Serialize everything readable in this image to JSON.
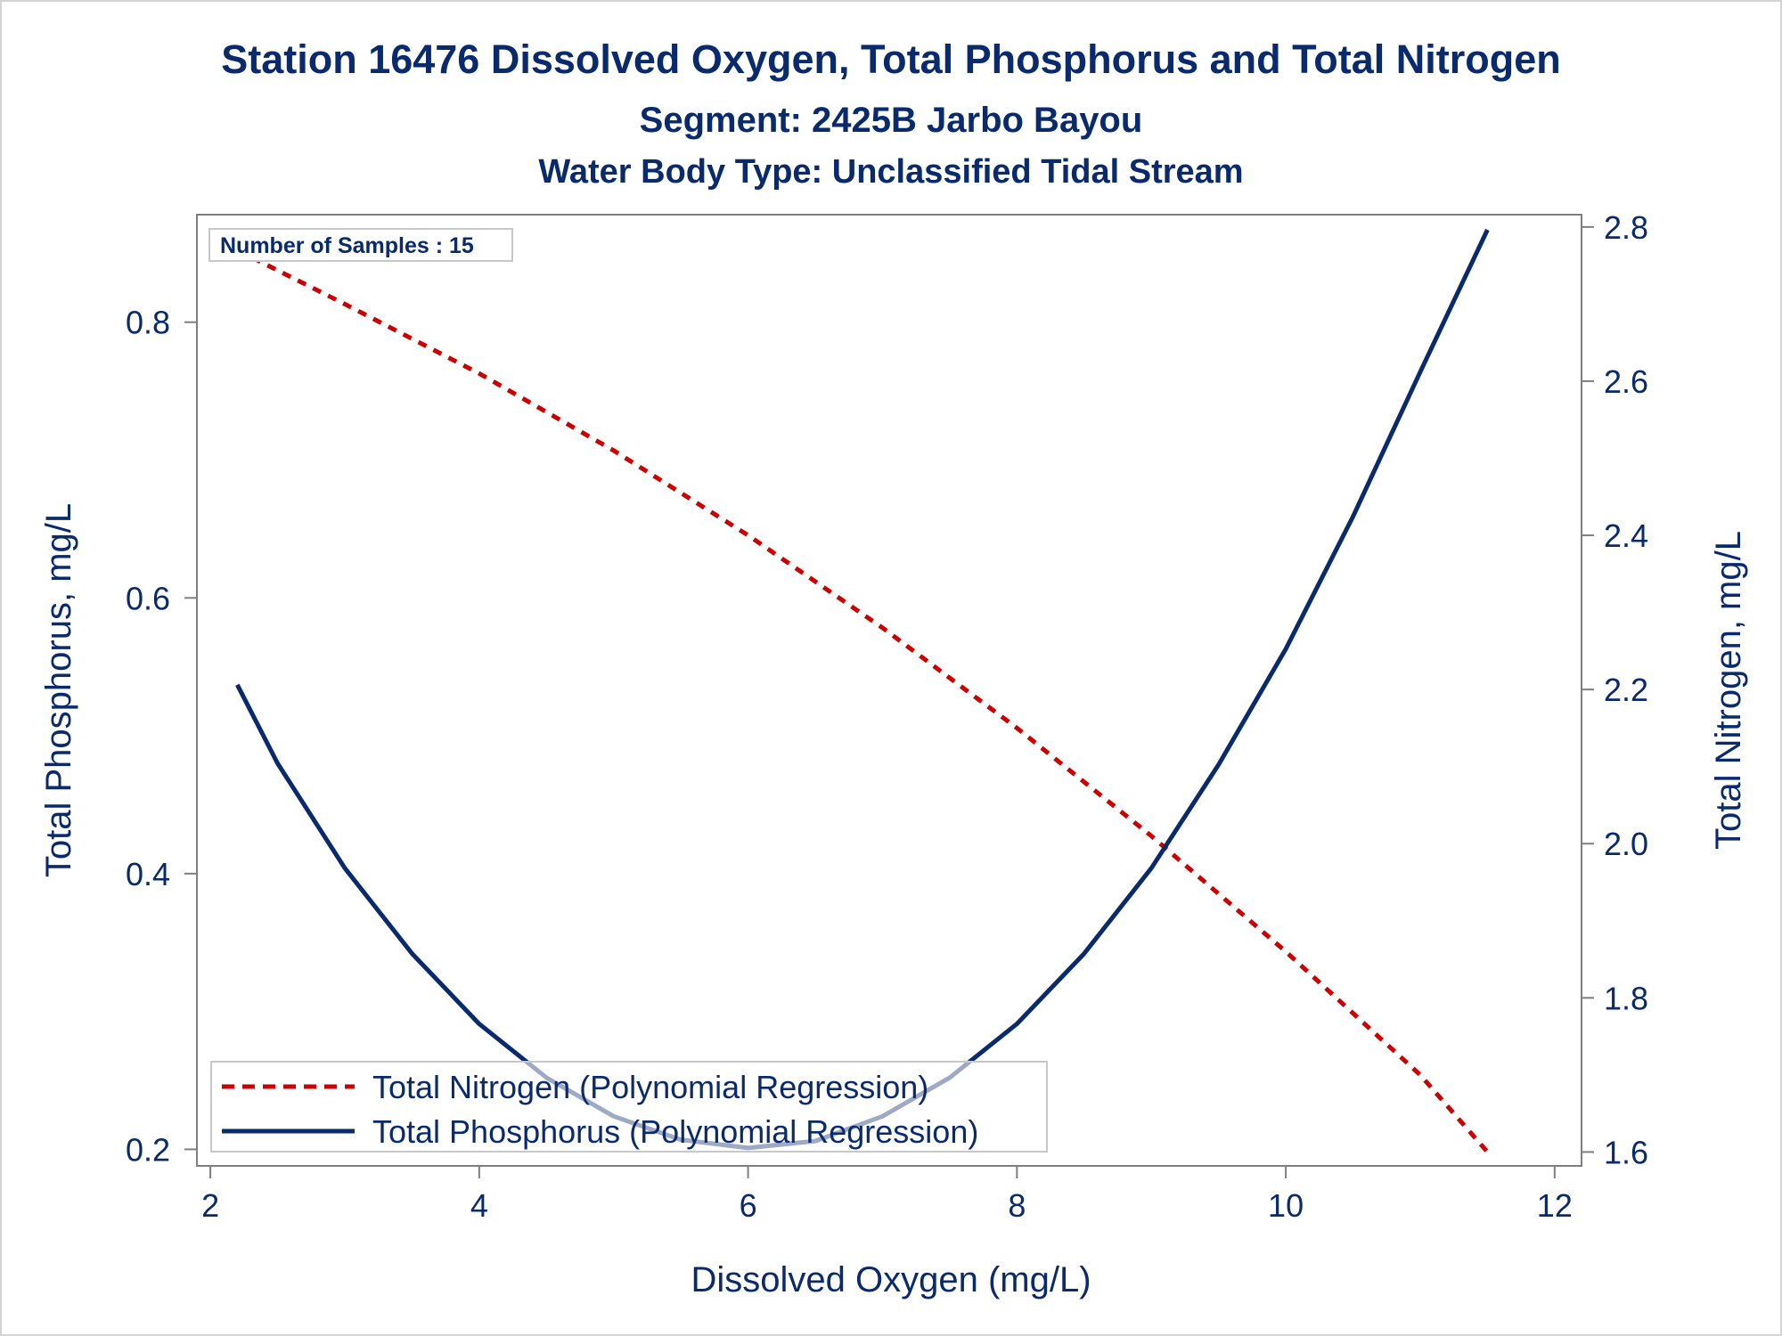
{
  "chart_data": {
    "type": "line",
    "title": "Station 16476  Dissolved Oxygen, Total Phosphorus and Total Nitrogen",
    "subtitle": "Segment: 2425B  Jarbo Bayou",
    "subtitle2": "Water Body Type: Unclassified Tidal Stream",
    "xlabel": "Dissolved Oxygen (mg/L)",
    "ylabel": "Total Phosphorus, mg/L",
    "y2label": "Total Nitrogen, mg/L",
    "xlim": [
      1.9,
      12.2
    ],
    "ylim": [
      0.188,
      0.878
    ],
    "y2lim": [
      1.582,
      2.816
    ],
    "xticks": [
      "2",
      "4",
      "6",
      "8",
      "10",
      "12"
    ],
    "yticks": [
      "0.2",
      "0.4",
      "0.6",
      "0.8"
    ],
    "y2ticks": [
      "1.6",
      "1.8",
      "2.0",
      "2.2",
      "2.4",
      "2.6",
      "2.8"
    ],
    "annotation": "Number of Samples : 15",
    "legend_position": "bottom-left",
    "grid": false,
    "series": [
      {
        "name": "Total Nitrogen (Polynomial Regression)",
        "axis": "right",
        "style": "dashed",
        "color": "#CC0000",
        "x": [
          2.2,
          3.0,
          4.0,
          5.0,
          6.0,
          7.0,
          8.0,
          9.0,
          10.0,
          11.0,
          11.5
        ],
        "y": [
          2.77,
          2.7,
          2.61,
          2.51,
          2.4,
          2.28,
          2.15,
          2.01,
          1.86,
          1.7,
          1.6
        ]
      },
      {
        "name": "Total Phosphorus (Polynomial Regression)",
        "axis": "left",
        "style": "solid",
        "color": "#0A2A6E",
        "x": [
          2.2,
          2.5,
          3.0,
          3.5,
          4.0,
          4.5,
          5.0,
          5.5,
          6.0,
          6.5,
          7.0,
          7.5,
          8.0,
          8.5,
          9.0,
          9.5,
          10.0,
          10.5,
          11.0,
          11.5
        ],
        "y": [
          0.537,
          0.48,
          0.404,
          0.342,
          0.291,
          0.252,
          0.224,
          0.207,
          0.201,
          0.206,
          0.224,
          0.252,
          0.291,
          0.342,
          0.404,
          0.479,
          0.563,
          0.659,
          0.764,
          0.867
        ]
      }
    ]
  },
  "colors": {
    "text": "#0A2A6E",
    "axis": "#7F7F7F",
    "nitrogen": "#CC0000",
    "phosphorus": "#0A2A6E"
  }
}
